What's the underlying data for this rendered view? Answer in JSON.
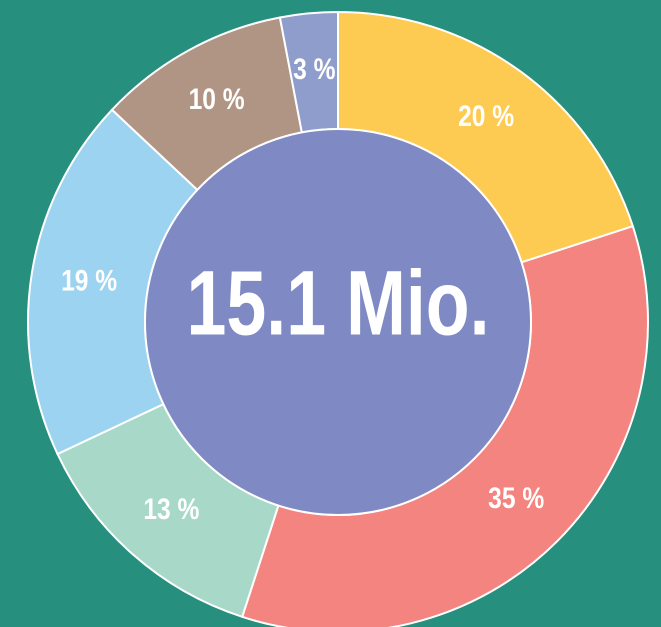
{
  "chart_data": {
    "type": "donut",
    "center_label": "15.1 Mio.",
    "values": [
      20,
      35,
      13,
      19,
      10,
      3
    ],
    "value_labels": [
      "20 %",
      "35 %",
      "13 %",
      "19 %",
      "10 %",
      "3 %"
    ],
    "colors": [
      "#fecb52",
      "#f4847f",
      "#a8d8c8",
      "#9cd3f0",
      "#b09584",
      "#8e9dcc"
    ],
    "center_color": "#7f89c4",
    "background": "#268f7d"
  }
}
